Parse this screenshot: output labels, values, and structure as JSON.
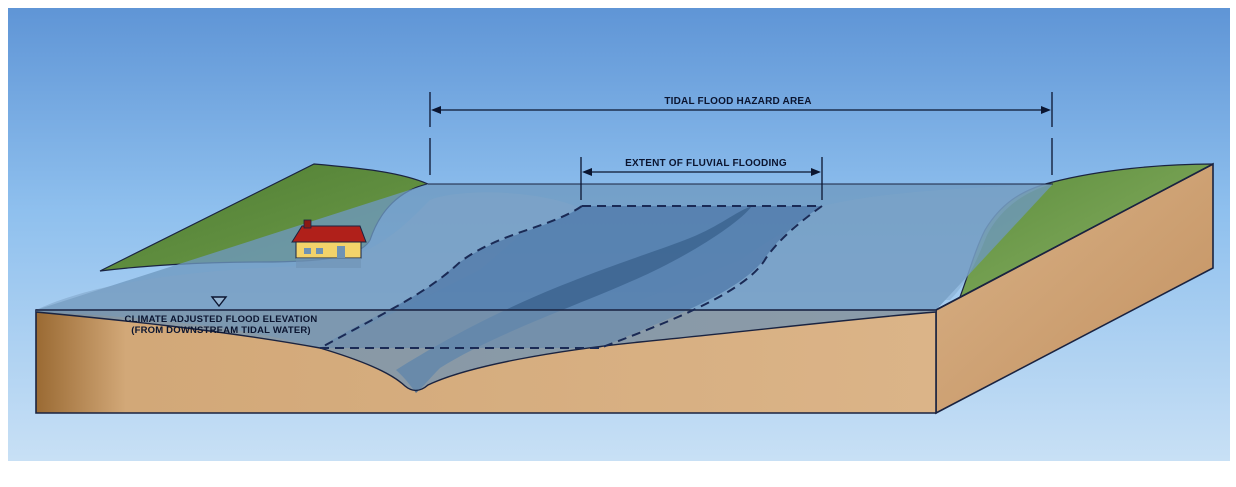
{
  "labels": {
    "tidal_flood_hazard_area": "TIDAL FLOOD HAZARD AREA",
    "extent_of_fluvial_flooding": "EXTENT OF FLUVIAL FLOODING",
    "flood_elevation_line1": "CLIMATE ADJUSTED FLOOD ELEVATION",
    "flood_elevation_line2": "(FROM DOWNSTREAM TIDAL WATER)"
  },
  "colors": {
    "sky_top": "#5f95d6",
    "sky_bottom": "#c5dff5",
    "grass": "#5c8a3e",
    "soil": "#d3aa7c",
    "soil_dark": "#8a5f2e",
    "water": "#5f8fb8",
    "channel": "#3f6a9c",
    "roof": "#b0201a",
    "house_wall": "#f3d36a",
    "outline": "#1a2340"
  },
  "icons": [
    "water-level-triangle-icon",
    "house-icon"
  ]
}
